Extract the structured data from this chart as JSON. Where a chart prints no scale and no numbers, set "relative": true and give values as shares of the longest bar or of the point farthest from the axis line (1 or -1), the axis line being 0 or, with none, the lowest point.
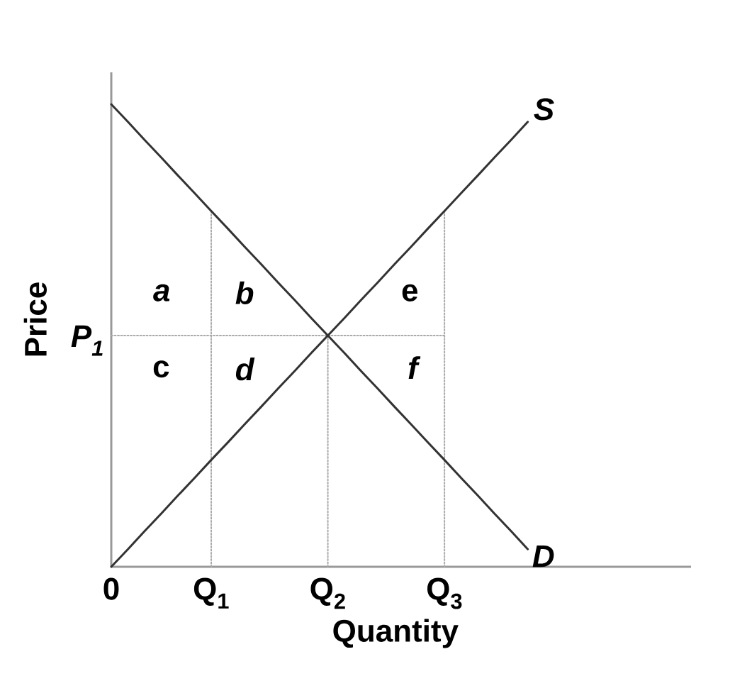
{
  "chart_data": {
    "type": "line",
    "relative": true,
    "xlabel": "Quantity",
    "ylabel": "Price",
    "categories": [
      "0",
      null,
      null,
      null,
      null,
      null,
      "Q$_{1}$",
      null,
      null,
      null,
      null,
      null,
      null,
      "Q$_{2}$",
      null,
      null,
      null,
      null,
      null,
      null,
      "Q$_{3}$",
      null,
      null,
      null,
      null,
      null,
      null,
      null,
      null,
      null,
      null,
      null,
      null,
      null,
      null
    ],
    "series": [
      {
        "name": "P$_{1}$",
        "color": "#aaaaaa",
        "line_style": "dotted",
        "values": [
          0.5,
          0.5,
          0.5,
          0.5,
          0.5,
          0.5,
          0.5,
          0.5,
          0.5,
          0.5,
          0.5,
          0.5,
          0.5,
          0.5,
          0.5,
          0.5,
          0.5,
          0.5,
          0.5,
          0.5,
          0.5,
          null,
          null,
          null,
          null,
          null,
          null,
          null,
          null,
          null,
          null,
          null,
          null,
          null,
          null
        ]
      },
      {
        "color": "#aaaaaa",
        "line_style": "dotted",
        "x": [
          "Q$_{1}$",
          "Q$_{1}$"
        ],
        "values": [
          0,
          0.769
        ]
      },
      {
        "color": "#aaaaaa",
        "line_style": "dotted",
        "x": [
          "Q$_{2}$",
          "Q$_{2}$"
        ],
        "values": [
          0,
          0.5
        ]
      },
      {
        "color": "#aaaaaa",
        "line_style": "dotted",
        "x": [
          "Q$_{3}$",
          "Q$_{3}$"
        ],
        "values": [
          0,
          0.769
        ]
      },
      {
        "name": "D",
        "color": "#333333",
        "values": [
          1,
          0.962,
          0.923,
          0.885,
          0.846,
          0.808,
          0.769,
          0.731,
          0.692,
          0.654,
          0.615,
          0.577,
          0.538,
          0.5,
          0.462,
          0.423,
          0.385,
          0.346,
          0.308,
          0.269,
          0.231,
          0.192,
          0.154,
          0.115,
          0.077,
          0.038,
          null,
          null,
          null,
          null,
          null,
          null,
          null,
          null,
          null
        ]
      },
      {
        "name": "S",
        "color": "#333333",
        "values": [
          0,
          0.038,
          0.077,
          0.115,
          0.154,
          0.192,
          0.231,
          0.269,
          0.308,
          0.346,
          0.385,
          0.423,
          0.462,
          0.5,
          0.538,
          0.577,
          0.615,
          0.654,
          0.692,
          0.731,
          0.769,
          0.808,
          0.846,
          0.885,
          0.923,
          0.962,
          null,
          null,
          null,
          null,
          null,
          null,
          null,
          null,
          null
        ]
      }
    ],
    "annotations": [
      "a",
      "b",
      "c",
      "d",
      "e",
      "f"
    ]
  }
}
